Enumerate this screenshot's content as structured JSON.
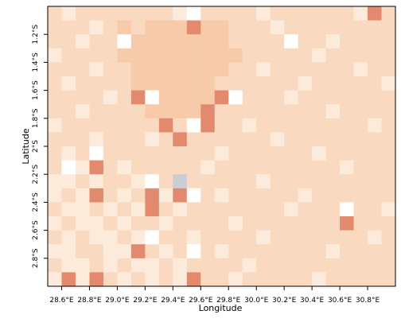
{
  "chart_data": {
    "type": "heatmap",
    "x_label": "Longitude",
    "y_label": "Latitude",
    "xlim": [
      28.5,
      31.0
    ],
    "ylim": [
      -3.0,
      -1.0
    ],
    "xticks": [
      {
        "value": 28.6,
        "label": "28.6°E"
      },
      {
        "value": 28.8,
        "label": "28.8°E"
      },
      {
        "value": 29.0,
        "label": "29.0°E"
      },
      {
        "value": 29.2,
        "label": "29.2°E"
      },
      {
        "value": 29.4,
        "label": "29.4°E"
      },
      {
        "value": 29.6,
        "label": "29.6°E"
      },
      {
        "value": 29.8,
        "label": "29.8°E"
      },
      {
        "value": 30.0,
        "label": "30.0°E"
      },
      {
        "value": 30.2,
        "label": "30.2°E"
      },
      {
        "value": 30.4,
        "label": "30.4°E"
      },
      {
        "value": 30.6,
        "label": "30.6°E"
      },
      {
        "value": 30.8,
        "label": "30.8°E"
      }
    ],
    "yticks": [
      {
        "value": -1.2,
        "label": "1.2°S"
      },
      {
        "value": -1.4,
        "label": "1.4°S"
      },
      {
        "value": -1.6,
        "label": "1.6°S"
      },
      {
        "value": -1.8,
        "label": "1.8°S"
      },
      {
        "value": -2.0,
        "label": "2°S"
      },
      {
        "value": -2.2,
        "label": "2.2°S"
      },
      {
        "value": -2.4,
        "label": "2.4°S"
      },
      {
        "value": -2.6,
        "label": "2.6°S"
      },
      {
        "value": -2.8,
        "label": "2.8°S"
      }
    ],
    "colors": [
      "#fcebdb",
      "#f9dac0",
      "#f7cba9",
      "#e3896e",
      "#ffffff",
      "#c8ced6"
    ],
    "values": [
      [
        1,
        0,
        1,
        1,
        1,
        1,
        1,
        1,
        1,
        0,
        4,
        1,
        1,
        1,
        1,
        0,
        1,
        1,
        1,
        1,
        1,
        1,
        0,
        3,
        1
      ],
      [
        1,
        1,
        1,
        0,
        1,
        2,
        1,
        2,
        2,
        2,
        3,
        2,
        2,
        1,
        1,
        1,
        0,
        1,
        1,
        1,
        1,
        1,
        1,
        1,
        1
      ],
      [
        1,
        1,
        0,
        1,
        1,
        4,
        2,
        2,
        2,
        2,
        2,
        2,
        2,
        1,
        1,
        1,
        1,
        4,
        1,
        1,
        0,
        1,
        1,
        1,
        1
      ],
      [
        0,
        1,
        1,
        1,
        1,
        2,
        2,
        2,
        2,
        2,
        2,
        2,
        2,
        2,
        1,
        1,
        1,
        1,
        1,
        0,
        1,
        1,
        1,
        1,
        1
      ],
      [
        1,
        1,
        1,
        0,
        1,
        1,
        2,
        2,
        2,
        2,
        2,
        2,
        2,
        1,
        1,
        0,
        1,
        1,
        1,
        1,
        1,
        1,
        0,
        1,
        1
      ],
      [
        1,
        0,
        1,
        1,
        1,
        1,
        2,
        2,
        2,
        2,
        2,
        2,
        1,
        1,
        1,
        1,
        1,
        1,
        0,
        1,
        1,
        1,
        1,
        1,
        0
      ],
      [
        1,
        1,
        1,
        1,
        0,
        1,
        3,
        4,
        2,
        2,
        2,
        2,
        3,
        4,
        1,
        1,
        1,
        0,
        1,
        1,
        1,
        1,
        1,
        1,
        1
      ],
      [
        1,
        1,
        0,
        1,
        1,
        1,
        1,
        2,
        2,
        2,
        2,
        3,
        1,
        1,
        1,
        1,
        1,
        1,
        1,
        1,
        0,
        1,
        1,
        1,
        1
      ],
      [
        0,
        1,
        1,
        1,
        1,
        1,
        1,
        1,
        3,
        1,
        4,
        3,
        1,
        1,
        0,
        1,
        1,
        1,
        1,
        1,
        1,
        1,
        1,
        0,
        1
      ],
      [
        1,
        1,
        1,
        0,
        1,
        1,
        1,
        0,
        1,
        3,
        1,
        1,
        1,
        1,
        1,
        1,
        0,
        1,
        1,
        1,
        1,
        1,
        1,
        1,
        1
      ],
      [
        1,
        0,
        1,
        4,
        1,
        1,
        1,
        1,
        1,
        1,
        1,
        1,
        0,
        1,
        1,
        1,
        1,
        1,
        1,
        0,
        1,
        1,
        1,
        1,
        1
      ],
      [
        1,
        4,
        0,
        3,
        1,
        0,
        1,
        1,
        1,
        1,
        1,
        0,
        1,
        1,
        1,
        1,
        1,
        1,
        1,
        1,
        1,
        0,
        1,
        1,
        1
      ],
      [
        0,
        0,
        1,
        0,
        1,
        1,
        0,
        4,
        1,
        5,
        1,
        1,
        1,
        1,
        1,
        0,
        1,
        1,
        1,
        1,
        1,
        1,
        1,
        1,
        1
      ],
      [
        0,
        1,
        0,
        3,
        1,
        0,
        1,
        3,
        0,
        3,
        4,
        1,
        0,
        1,
        1,
        1,
        1,
        1,
        0,
        1,
        1,
        1,
        1,
        1,
        1
      ],
      [
        1,
        0,
        0,
        1,
        0,
        1,
        0,
        3,
        1,
        0,
        1,
        1,
        1,
        1,
        1,
        1,
        1,
        0,
        1,
        1,
        1,
        4,
        1,
        1,
        0
      ],
      [
        0,
        1,
        0,
        0,
        1,
        0,
        1,
        1,
        0,
        1,
        1,
        1,
        1,
        0,
        1,
        1,
        1,
        1,
        1,
        1,
        1,
        3,
        1,
        1,
        1
      ],
      [
        1,
        0,
        1,
        0,
        0,
        1,
        0,
        4,
        1,
        1,
        0,
        1,
        1,
        1,
        1,
        0,
        1,
        1,
        1,
        1,
        1,
        1,
        1,
        0,
        1
      ],
      [
        0,
        0,
        1,
        1,
        0,
        0,
        3,
        1,
        0,
        1,
        4,
        1,
        0,
        1,
        1,
        1,
        1,
        1,
        1,
        1,
        0,
        1,
        1,
        1,
        1
      ],
      [
        1,
        0,
        0,
        1,
        0,
        1,
        0,
        0,
        1,
        0,
        1,
        1,
        1,
        1,
        0,
        1,
        1,
        1,
        1,
        1,
        1,
        1,
        1,
        1,
        1
      ],
      [
        0,
        3,
        0,
        3,
        1,
        0,
        1,
        0,
        1,
        0,
        3,
        1,
        1,
        0,
        1,
        1,
        1,
        1,
        1,
        0,
        1,
        1,
        1,
        1,
        1
      ]
    ]
  }
}
